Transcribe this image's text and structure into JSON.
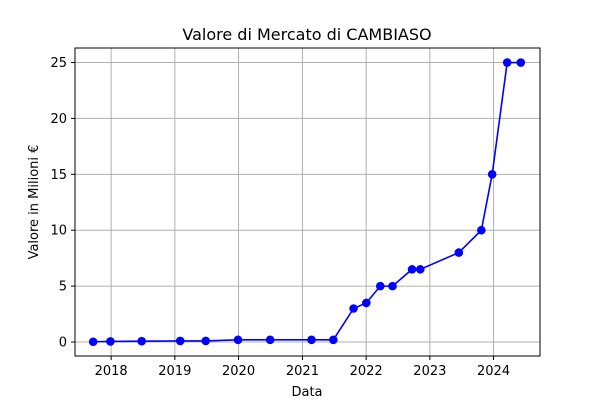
{
  "chart_data": {
    "type": "line",
    "title": "Valore di Mercato di CAMBIASO",
    "xlabel": "Data",
    "ylabel": "Valore in Milioni €",
    "x_ticks": [
      "2018",
      "2019",
      "2020",
      "2021",
      "2022",
      "2023",
      "2024"
    ],
    "y_ticks": [
      0,
      5,
      10,
      15,
      20,
      25
    ],
    "ylim": [
      -1.25,
      26.3
    ],
    "xlim": [
      "2017-06-08",
      "2024-09-23"
    ],
    "grid": true,
    "series": [
      {
        "color": "#0000ff",
        "marker": "circle",
        "points": [
          {
            "date": "2017-09-20",
            "value": 0.025
          },
          {
            "date": "2017-12-28",
            "value": 0.05
          },
          {
            "date": "2018-06-25",
            "value": 0.075
          },
          {
            "date": "2019-02-01",
            "value": 0.1
          },
          {
            "date": "2019-06-27",
            "value": 0.1
          },
          {
            "date": "2019-12-29",
            "value": 0.2
          },
          {
            "date": "2020-06-30",
            "value": 0.2
          },
          {
            "date": "2021-02-22",
            "value": 0.2
          },
          {
            "date": "2021-06-27",
            "value": 0.2
          },
          {
            "date": "2021-10-21",
            "value": 3.0
          },
          {
            "date": "2022-01-02",
            "value": 3.5
          },
          {
            "date": "2022-03-23",
            "value": 5.0
          },
          {
            "date": "2022-06-01",
            "value": 5.0
          },
          {
            "date": "2022-09-21",
            "value": 6.5
          },
          {
            "date": "2022-11-07",
            "value": 6.5
          },
          {
            "date": "2023-06-16",
            "value": 8.0
          },
          {
            "date": "2023-10-23",
            "value": 10.0
          },
          {
            "date": "2023-12-24",
            "value": 15.0
          },
          {
            "date": "2024-03-19",
            "value": 25.0
          },
          {
            "date": "2024-06-05",
            "value": 25.0
          }
        ]
      }
    ]
  }
}
